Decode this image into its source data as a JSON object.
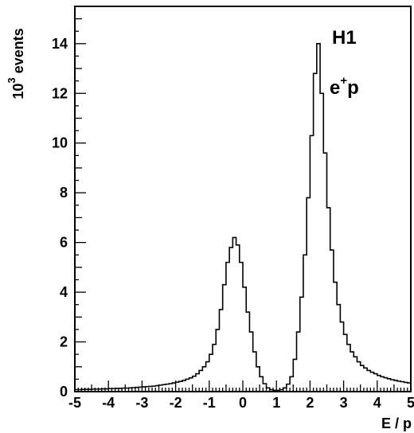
{
  "chart_data": {
    "type": "bar",
    "style": "step-histogram",
    "xlabel": "E / p",
    "ylabel": "10³ events",
    "xlim": [
      -5,
      5
    ],
    "ylim": [
      0,
      15.5
    ],
    "x_ticks": [
      -5,
      -4,
      -3,
      -2,
      -1,
      0,
      1,
      2,
      3,
      4,
      5
    ],
    "x_tick_labels": [
      "-5",
      "-4",
      "-3",
      "-2",
      "-1",
      "0",
      "1",
      "2",
      "3",
      "4",
      "5"
    ],
    "y_ticks": [
      0,
      2,
      4,
      6,
      8,
      10,
      12,
      14
    ],
    "y_tick_labels": [
      "0",
      "2",
      "4",
      "6",
      "8",
      "10",
      "12",
      "14"
    ],
    "bin_width": 0.1,
    "bin_start": -5,
    "annotations": [
      {
        "text": "H1",
        "name": "experiment-label"
      },
      {
        "text_base": "e",
        "text_sup": "+",
        "text_tail": "p",
        "name": "beam-label"
      }
    ],
    "values": [
      0.08,
      0.08,
      0.09,
      0.09,
      0.09,
      0.1,
      0.1,
      0.1,
      0.11,
      0.11,
      0.12,
      0.12,
      0.13,
      0.13,
      0.14,
      0.14,
      0.15,
      0.16,
      0.17,
      0.18,
      0.19,
      0.2,
      0.21,
      0.22,
      0.24,
      0.26,
      0.28,
      0.3,
      0.32,
      0.35,
      0.38,
      0.41,
      0.45,
      0.5,
      0.55,
      0.62,
      0.72,
      0.85,
      1.0,
      1.2,
      1.5,
      1.9,
      2.5,
      3.3,
      4.3,
      5.2,
      5.8,
      6.2,
      5.9,
      5.2,
      4.2,
      3.2,
      2.4,
      1.6,
      1.0,
      0.6,
      0.32,
      0.15,
      0.08,
      0.05,
      0.05,
      0.08,
      0.15,
      0.3,
      0.6,
      1.3,
      2.4,
      3.8,
      5.5,
      7.8,
      10.3,
      12.8,
      14.0,
      12.0,
      9.6,
      7.4,
      5.7,
      4.4,
      3.5,
      2.8,
      2.3,
      1.9,
      1.6,
      1.4,
      1.2,
      1.05,
      0.95,
      0.85,
      0.78,
      0.72,
      0.65,
      0.6,
      0.56,
      0.52,
      0.48,
      0.45,
      0.42,
      0.4,
      0.37,
      0.35
    ]
  }
}
